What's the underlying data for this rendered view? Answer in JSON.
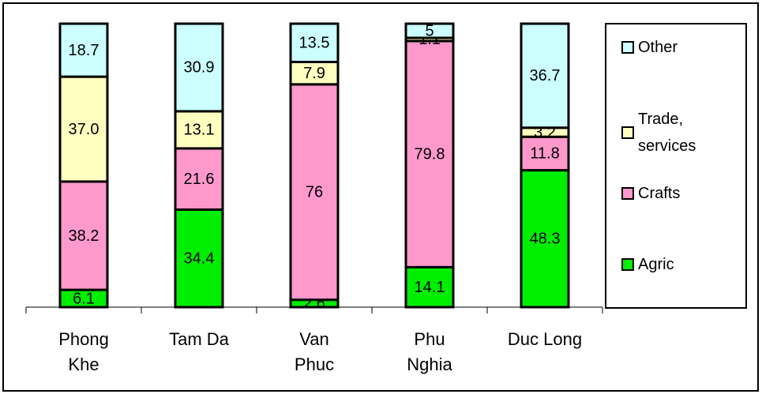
{
  "chart_data": {
    "type": "stacked-bar",
    "categories": [
      "Phong Khe",
      "Tam Da",
      "Van Phuc",
      "Phu Nghia",
      "Duc Long"
    ],
    "series": [
      {
        "name": "Agric",
        "color": "#00ee00",
        "values": [
          6.1,
          34.4,
          2.6,
          14.1,
          48.3
        ],
        "value_labels": [
          "6.1",
          "34.4",
          "2.6",
          "14.1",
          "48.3"
        ]
      },
      {
        "name": "Crafts",
        "color": "#ff99cc",
        "values": [
          38.2,
          21.6,
          76,
          79.8,
          11.8
        ],
        "value_labels": [
          "38.2",
          "21.6",
          "76",
          "79.8",
          "11.8"
        ]
      },
      {
        "name": "Trade, services",
        "color": "#ffffc0",
        "values": [
          37.0,
          13.1,
          7.9,
          1.1,
          3.2
        ],
        "value_labels": [
          "37.0",
          "13.1",
          "7.9",
          "1.1",
          "3.2"
        ]
      },
      {
        "name": "Other",
        "color": "#ccffff",
        "values": [
          18.7,
          30.9,
          13.5,
          5,
          36.7
        ],
        "value_labels": [
          "18.7",
          "30.9",
          "13.5",
          "5",
          "36.7"
        ]
      }
    ],
    "ylim": [
      0,
      100
    ],
    "legend": "right"
  }
}
